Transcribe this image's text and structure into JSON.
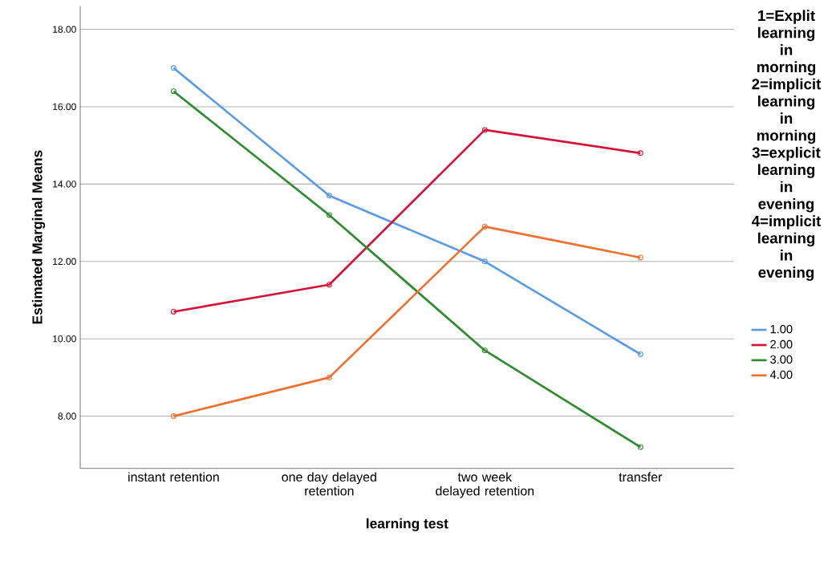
{
  "chart_data": {
    "type": "line",
    "xlabel": "learning test",
    "ylabel": "Estimated Marginal Means",
    "legend_title": "1=Explit learning in morning 2=implicit learning in morning 3=explicit learning in evening 4=implicit learning in evening",
    "categories": [
      "instant retention",
      "one day delayed retention",
      "two week delayed retention",
      "transfer"
    ],
    "series": [
      {
        "name": "1.00",
        "color": "#5a9be6",
        "values": [
          17.0,
          13.7,
          12.0,
          9.6
        ]
      },
      {
        "name": "2.00",
        "color": "#d5133a",
        "values": [
          10.7,
          11.4,
          15.4,
          14.8
        ]
      },
      {
        "name": "3.00",
        "color": "#2e8b2e",
        "values": [
          16.4,
          13.2,
          9.7,
          7.2
        ]
      },
      {
        "name": "4.00",
        "color": "#f07030",
        "values": [
          8.0,
          9.0,
          12.9,
          12.1
        ]
      }
    ],
    "ylim": [
      6.65,
      18.6
    ],
    "yticks": [
      {
        "value": 8,
        "label": "8.00"
      },
      {
        "value": 10,
        "label": "10.00"
      },
      {
        "value": 12,
        "label": "12.00"
      },
      {
        "value": 14,
        "label": "14.00"
      },
      {
        "value": 16,
        "label": "16.00"
      },
      {
        "value": 18,
        "label": "18.00"
      }
    ],
    "grid": "y",
    "legend": "right",
    "marker": "circle",
    "line_style": "solid"
  }
}
